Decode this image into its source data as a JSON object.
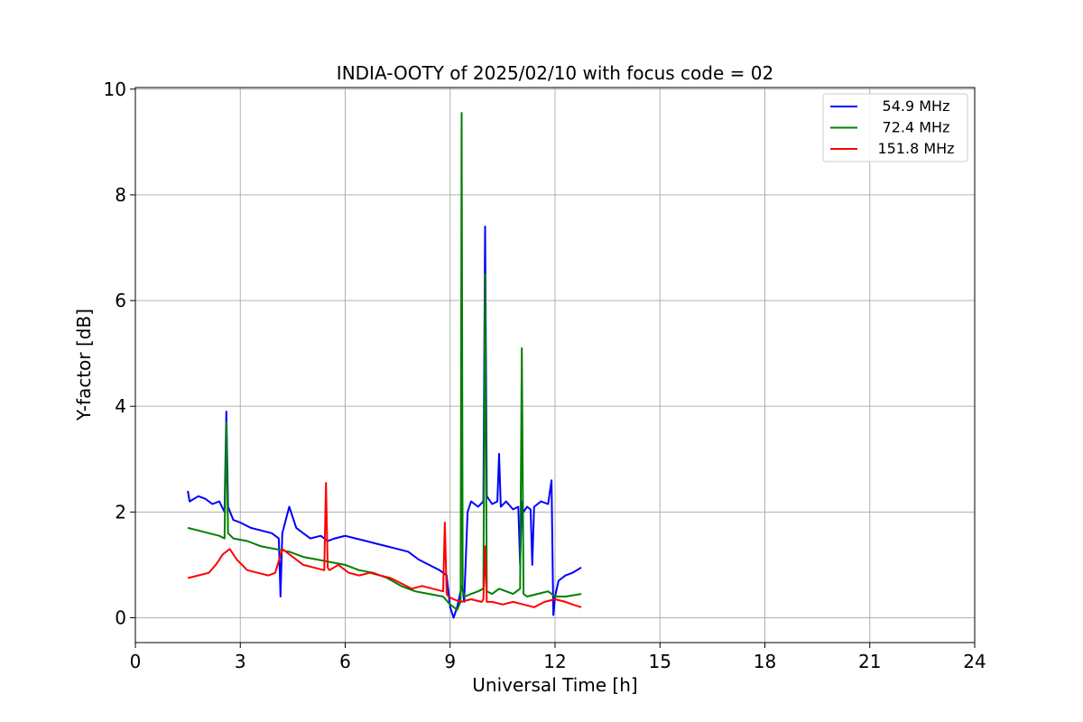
{
  "chart_data": {
    "type": "line",
    "title": "INDIA-OOTY of 2025/02/10 with focus code = 02",
    "xlabel": "Universal Time [h]",
    "ylabel": "Y-factor [dB]",
    "xlim": [
      0,
      24
    ],
    "ylim": [
      -0.47,
      10.03
    ],
    "xticks": [
      0,
      3,
      6,
      9,
      12,
      15,
      18,
      21,
      24
    ],
    "yticks": [
      0,
      2,
      4,
      6,
      8,
      10
    ],
    "xtick_labels": [
      "0",
      "3",
      "6",
      "9",
      "12",
      "15",
      "18",
      "21",
      "24"
    ],
    "ytick_labels": [
      "0",
      "2",
      "4",
      "6",
      "8",
      "10"
    ],
    "grid": true,
    "legend_position": "top-right",
    "series": [
      {
        "name": "54.9 MHz",
        "color": "#0000ff",
        "x": [
          1.5,
          1.55,
          1.8,
          2.0,
          2.2,
          2.4,
          2.55,
          2.6,
          2.65,
          2.8,
          3.0,
          3.3,
          3.6,
          3.9,
          4.1,
          4.15,
          4.2,
          4.4,
          4.6,
          4.8,
          5.0,
          5.3,
          5.5,
          5.7,
          6.0,
          6.3,
          6.6,
          6.9,
          7.2,
          7.5,
          7.8,
          8.1,
          8.4,
          8.7,
          8.9,
          9.0,
          9.1,
          9.2,
          9.3,
          9.35,
          9.4,
          9.5,
          9.6,
          9.8,
          9.95,
          10.0,
          10.05,
          10.2,
          10.35,
          10.4,
          10.45,
          10.6,
          10.8,
          10.95,
          11.0,
          11.05,
          11.1,
          11.2,
          11.3,
          11.35,
          11.4,
          11.6,
          11.8,
          11.9,
          11.95,
          12.0,
          12.1,
          12.3,
          12.5,
          12.75
        ],
        "values": [
          2.4,
          2.2,
          2.3,
          2.25,
          2.15,
          2.2,
          2.0,
          3.9,
          2.1,
          1.85,
          1.8,
          1.7,
          1.65,
          1.6,
          1.5,
          0.4,
          1.6,
          2.1,
          1.7,
          1.6,
          1.5,
          1.55,
          1.45,
          1.5,
          1.55,
          1.5,
          1.45,
          1.4,
          1.35,
          1.3,
          1.25,
          1.1,
          1.0,
          0.9,
          0.8,
          0.2,
          0.0,
          0.2,
          0.5,
          0.6,
          0.3,
          2.0,
          2.2,
          2.1,
          2.2,
          7.4,
          2.3,
          2.15,
          2.2,
          3.1,
          2.1,
          2.2,
          2.05,
          2.1,
          1.0,
          2.2,
          2.0,
          2.1,
          2.05,
          1.0,
          2.1,
          2.2,
          2.15,
          2.6,
          0.05,
          0.4,
          0.7,
          0.8,
          0.85,
          0.95
        ]
      },
      {
        "name": "72.4 MHz",
        "color": "#008000",
        "x": [
          1.5,
          1.8,
          2.1,
          2.4,
          2.55,
          2.6,
          2.65,
          2.8,
          3.2,
          3.6,
          4.0,
          4.4,
          4.8,
          5.2,
          5.6,
          6.0,
          6.4,
          6.8,
          7.2,
          7.6,
          8.0,
          8.4,
          8.8,
          9.0,
          9.2,
          9.3,
          9.33,
          9.36,
          9.42,
          9.6,
          9.8,
          9.95,
          10.0,
          10.05,
          10.2,
          10.4,
          10.6,
          10.8,
          11.0,
          11.05,
          11.1,
          11.2,
          11.5,
          11.8,
          12.0,
          12.3,
          12.75
        ],
        "values": [
          1.7,
          1.65,
          1.6,
          1.55,
          1.5,
          3.7,
          1.6,
          1.5,
          1.45,
          1.35,
          1.3,
          1.25,
          1.15,
          1.1,
          1.05,
          1.0,
          0.9,
          0.85,
          0.75,
          0.6,
          0.5,
          0.45,
          0.4,
          0.25,
          0.15,
          0.3,
          9.55,
          0.5,
          0.4,
          0.45,
          0.5,
          0.55,
          6.5,
          0.5,
          0.45,
          0.55,
          0.5,
          0.45,
          0.55,
          5.1,
          0.45,
          0.4,
          0.45,
          0.5,
          0.4,
          0.4,
          0.45
        ]
      },
      {
        "name": "151.8 MHz",
        "color": "#ff0000",
        "x": [
          1.5,
          1.8,
          2.1,
          2.3,
          2.5,
          2.7,
          2.9,
          3.2,
          3.5,
          3.8,
          4.0,
          4.2,
          4.5,
          4.8,
          5.1,
          5.4,
          5.45,
          5.5,
          5.55,
          5.8,
          6.1,
          6.4,
          6.7,
          7.0,
          7.3,
          7.6,
          7.9,
          8.2,
          8.5,
          8.8,
          8.85,
          8.9,
          8.95,
          9.1,
          9.3,
          9.6,
          9.9,
          9.95,
          10.0,
          10.05,
          10.2,
          10.5,
          10.8,
          11.1,
          11.4,
          11.7,
          12.0,
          12.3,
          12.5,
          12.75
        ],
        "values": [
          0.75,
          0.8,
          0.85,
          1.0,
          1.2,
          1.3,
          1.1,
          0.9,
          0.85,
          0.8,
          0.85,
          1.3,
          1.15,
          1.0,
          0.95,
          0.9,
          2.55,
          0.95,
          0.9,
          1.0,
          0.85,
          0.8,
          0.85,
          0.8,
          0.75,
          0.65,
          0.55,
          0.6,
          0.55,
          0.5,
          1.8,
          0.45,
          0.4,
          0.35,
          0.3,
          0.35,
          0.3,
          0.35,
          1.35,
          0.3,
          0.3,
          0.25,
          0.3,
          0.25,
          0.2,
          0.3,
          0.35,
          0.3,
          0.25,
          0.2
        ]
      }
    ]
  }
}
